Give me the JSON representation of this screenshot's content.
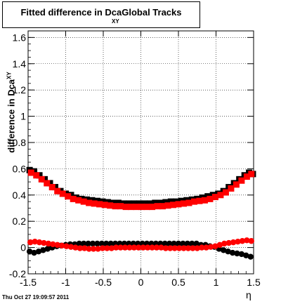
{
  "chart_data": {
    "type": "scatter",
    "title": "Fitted difference in Dca",
    "title_subscript": "XY",
    "title_suffix": "Global Tracks",
    "ylabel": "difference in Dca",
    "ylabel_subscript": "XY",
    "xlabel": "η",
    "xlim": [
      -1.5,
      1.5
    ],
    "ylim": [
      -0.2,
      1.65
    ],
    "x_ticks": [
      "-1.5",
      "-1",
      "-0.5",
      "0",
      "0.5",
      "1",
      "1.5"
    ],
    "y_ticks": [
      "-0.2",
      "0",
      "0.2",
      "0.4",
      "0.6",
      "0.8",
      "1",
      "1.2",
      "1.4",
      "1.6"
    ],
    "grid": true,
    "series": [
      {
        "marker": "square",
        "color": "#000000",
        "x": [
          -1.48,
          -1.42,
          -1.35,
          -1.28,
          -1.21,
          -1.14,
          -1.07,
          -1.0,
          -0.93,
          -0.86,
          -0.79,
          -0.72,
          -0.65,
          -0.58,
          -0.51,
          -0.44,
          -0.37,
          -0.3,
          -0.23,
          -0.16,
          -0.09,
          -0.02,
          0.05,
          0.12,
          0.19,
          0.26,
          0.33,
          0.4,
          0.47,
          0.54,
          0.61,
          0.68,
          0.75,
          0.82,
          0.89,
          0.96,
          1.03,
          1.1,
          1.17,
          1.24,
          1.31,
          1.38,
          1.44,
          1.49
        ],
        "values": [
          0.59,
          0.58,
          0.55,
          0.52,
          0.49,
          0.46,
          0.43,
          0.41,
          0.4,
          0.38,
          0.37,
          0.365,
          0.36,
          0.355,
          0.35,
          0.345,
          0.34,
          0.34,
          0.335,
          0.335,
          0.335,
          0.335,
          0.335,
          0.335,
          0.34,
          0.34,
          0.345,
          0.35,
          0.35,
          0.355,
          0.36,
          0.365,
          0.37,
          0.38,
          0.39,
          0.4,
          0.41,
          0.43,
          0.46,
          0.49,
          0.52,
          0.55,
          0.57,
          0.56
        ]
      },
      {
        "marker": "square",
        "color": "#ff0000",
        "x": [
          -1.46,
          -1.39,
          -1.32,
          -1.25,
          -1.18,
          -1.11,
          -1.04,
          -0.97,
          -0.9,
          -0.83,
          -0.76,
          -0.69,
          -0.62,
          -0.55,
          -0.48,
          -0.41,
          -0.34,
          -0.27,
          -0.2,
          -0.13,
          -0.06,
          0.01,
          0.08,
          0.15,
          0.22,
          0.29,
          0.36,
          0.43,
          0.5,
          0.57,
          0.64,
          0.71,
          0.78,
          0.85,
          0.92,
          0.99,
          1.06,
          1.13,
          1.2,
          1.27,
          1.34,
          1.41,
          1.47
        ],
        "values": [
          0.57,
          0.55,
          0.52,
          0.49,
          0.46,
          0.43,
          0.41,
          0.39,
          0.37,
          0.36,
          0.35,
          0.34,
          0.335,
          0.33,
          0.325,
          0.32,
          0.315,
          0.315,
          0.31,
          0.31,
          0.31,
          0.31,
          0.31,
          0.31,
          0.315,
          0.315,
          0.32,
          0.325,
          0.33,
          0.335,
          0.34,
          0.35,
          0.355,
          0.36,
          0.37,
          0.385,
          0.4,
          0.42,
          0.45,
          0.48,
          0.51,
          0.54,
          0.56
        ]
      },
      {
        "marker": "circle",
        "color": "#000000",
        "x": [
          -1.48,
          -1.42,
          -1.36,
          -1.3,
          -1.24,
          -1.18,
          -1.12,
          -1.06,
          -1.0,
          -0.94,
          -0.88,
          -0.82,
          -0.76,
          -0.7,
          -0.64,
          -0.58,
          -0.52,
          -0.46,
          -0.4,
          -0.34,
          -0.28,
          -0.22,
          -0.16,
          -0.1,
          -0.04,
          0.02,
          0.08,
          0.14,
          0.2,
          0.26,
          0.32,
          0.38,
          0.44,
          0.5,
          0.56,
          0.62,
          0.68,
          0.74,
          0.8,
          0.86,
          0.92,
          0.98,
          1.04,
          1.1,
          1.16,
          1.22,
          1.28,
          1.34,
          1.4,
          1.46
        ],
        "values": [
          -0.03,
          -0.04,
          -0.03,
          -0.02,
          -0.01,
          0.0,
          0.01,
          0.015,
          0.02,
          0.025,
          0.025,
          0.03,
          0.03,
          0.03,
          0.03,
          0.03,
          0.03,
          0.03,
          0.03,
          0.03,
          0.03,
          0.03,
          0.03,
          0.03,
          0.03,
          0.03,
          0.03,
          0.03,
          0.03,
          0.03,
          0.03,
          0.03,
          0.03,
          0.03,
          0.03,
          0.03,
          0.03,
          0.03,
          0.02,
          0.02,
          0.01,
          0.005,
          -0.01,
          -0.02,
          -0.03,
          -0.04,
          -0.045,
          -0.05,
          -0.06,
          -0.07
        ]
      },
      {
        "marker": "circle",
        "color": "#ff0000",
        "x": [
          -1.47,
          -1.41,
          -1.35,
          -1.29,
          -1.23,
          -1.17,
          -1.11,
          -1.05,
          -0.99,
          -0.93,
          -0.87,
          -0.81,
          -0.75,
          -0.69,
          -0.63,
          -0.57,
          -0.51,
          -0.45,
          -0.39,
          -0.33,
          -0.27,
          -0.21,
          -0.15,
          -0.09,
          -0.03,
          0.03,
          0.09,
          0.15,
          0.21,
          0.27,
          0.33,
          0.39,
          0.45,
          0.51,
          0.57,
          0.63,
          0.69,
          0.75,
          0.81,
          0.87,
          0.93,
          0.99,
          1.05,
          1.11,
          1.17,
          1.23,
          1.29,
          1.35,
          1.41,
          1.47
        ],
        "values": [
          0.04,
          0.045,
          0.04,
          0.035,
          0.03,
          0.025,
          0.02,
          0.015,
          0.01,
          0.005,
          0.0,
          -0.005,
          -0.005,
          -0.01,
          -0.01,
          -0.01,
          -0.005,
          -0.005,
          -0.005,
          0.0,
          0.0,
          0.0,
          0.0,
          0.0,
          0.0,
          0.0,
          0.0,
          0.0,
          0.0,
          0.0,
          -0.005,
          -0.005,
          -0.005,
          -0.005,
          -0.005,
          -0.005,
          -0.005,
          -0.005,
          0.0,
          0.0,
          0.005,
          0.01,
          0.02,
          0.03,
          0.035,
          0.04,
          0.045,
          0.05,
          0.055,
          0.05
        ]
      }
    ]
  },
  "footer": {
    "timestamp": "Thu Oct 27 19:09:57 2011"
  }
}
